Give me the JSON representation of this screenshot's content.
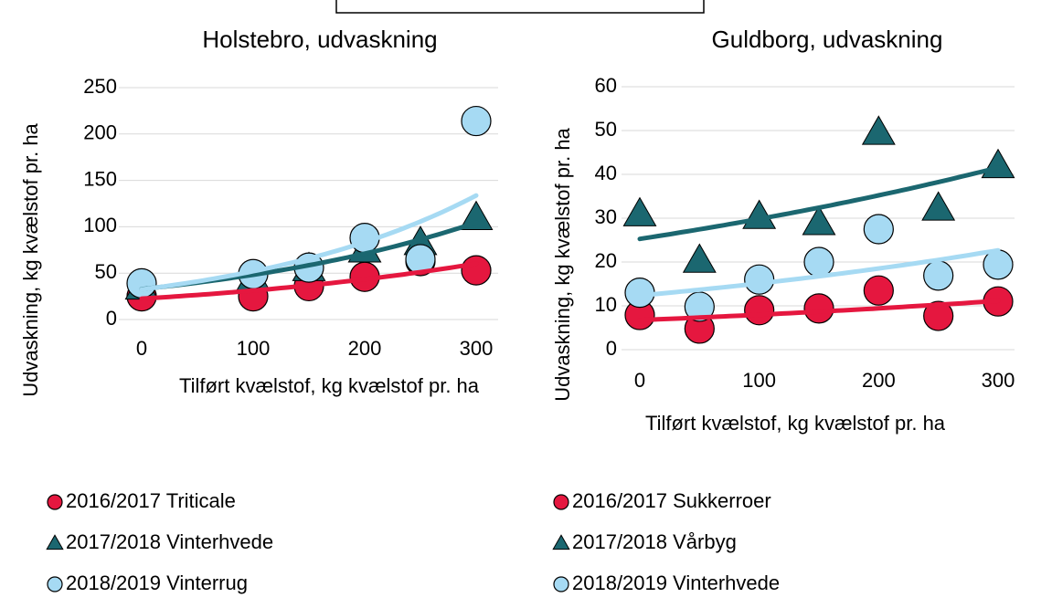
{
  "chart_data": [
    {
      "type": "scatter",
      "title": "Holstebro, udvaskning",
      "xlabel": "Tilført kvælstof, kg kvælstof pr. ha",
      "ylabel": "Udvaskning, kg kvælstof pr. ha",
      "xlim": [
        0,
        300
      ],
      "ylim": [
        0,
        250
      ],
      "xticks": [
        0,
        100,
        200,
        300
      ],
      "yticks": [
        0,
        50,
        100,
        150,
        200,
        250
      ],
      "grid": true,
      "trendline": "exponential",
      "series": [
        {
          "name": "2016/2017 Triticale",
          "color": "#e5173f",
          "marker": "circle",
          "x": [
            0,
            100,
            150,
            200,
            250,
            300
          ],
          "values": [
            25,
            25,
            36,
            46,
            63,
            53
          ]
        },
        {
          "name": "2017/2018 Vinterhvede",
          "color": "#1b6770",
          "marker": "triangle",
          "x": [
            0,
            100,
            150,
            200,
            250,
            300
          ],
          "values": [
            35,
            45,
            55,
            75,
            83,
            110
          ]
        },
        {
          "name": "2018/2019 Vinterrug",
          "color": "#a6daf3",
          "marker": "circle",
          "x": [
            0,
            100,
            150,
            200,
            250,
            300
          ],
          "values": [
            39,
            49,
            56,
            88,
            65,
            214
          ]
        }
      ]
    },
    {
      "type": "scatter",
      "title": "Guldborg, udvaskning",
      "xlabel": "Tilført kvælstof, kg kvælstof pr. ha",
      "ylabel": "Udvaskning, kg kvælstof pr. ha",
      "xlim": [
        0,
        300
      ],
      "ylim": [
        0,
        60
      ],
      "xticks": [
        0,
        100,
        200,
        300
      ],
      "yticks": [
        0,
        10,
        20,
        30,
        40,
        50,
        60
      ],
      "grid": true,
      "trendline": "exponential",
      "series": [
        {
          "name": "2016/2017 Sukkerroer",
          "color": "#e5173f",
          "marker": "circle",
          "x": [
            0,
            50,
            100,
            150,
            200,
            250,
            300
          ],
          "values": [
            7.9,
            4.8,
            9,
            9.4,
            13.5,
            7.7,
            11
          ]
        },
        {
          "name": "2017/2018 Vårbyg",
          "color": "#1b6770",
          "marker": "triangle",
          "x": [
            0,
            50,
            100,
            150,
            200,
            250,
            300
          ],
          "values": [
            31,
            20.4,
            30.4,
            29,
            49.6,
            32.3,
            42
          ]
        },
        {
          "name": "2018/2019 Vinterhvede",
          "color": "#a6daf3",
          "marker": "circle",
          "x": [
            0,
            50,
            100,
            150,
            200,
            250,
            300
          ],
          "values": [
            13,
            9.8,
            16,
            20,
            27.5,
            16.9,
            19.4
          ]
        }
      ]
    }
  ]
}
